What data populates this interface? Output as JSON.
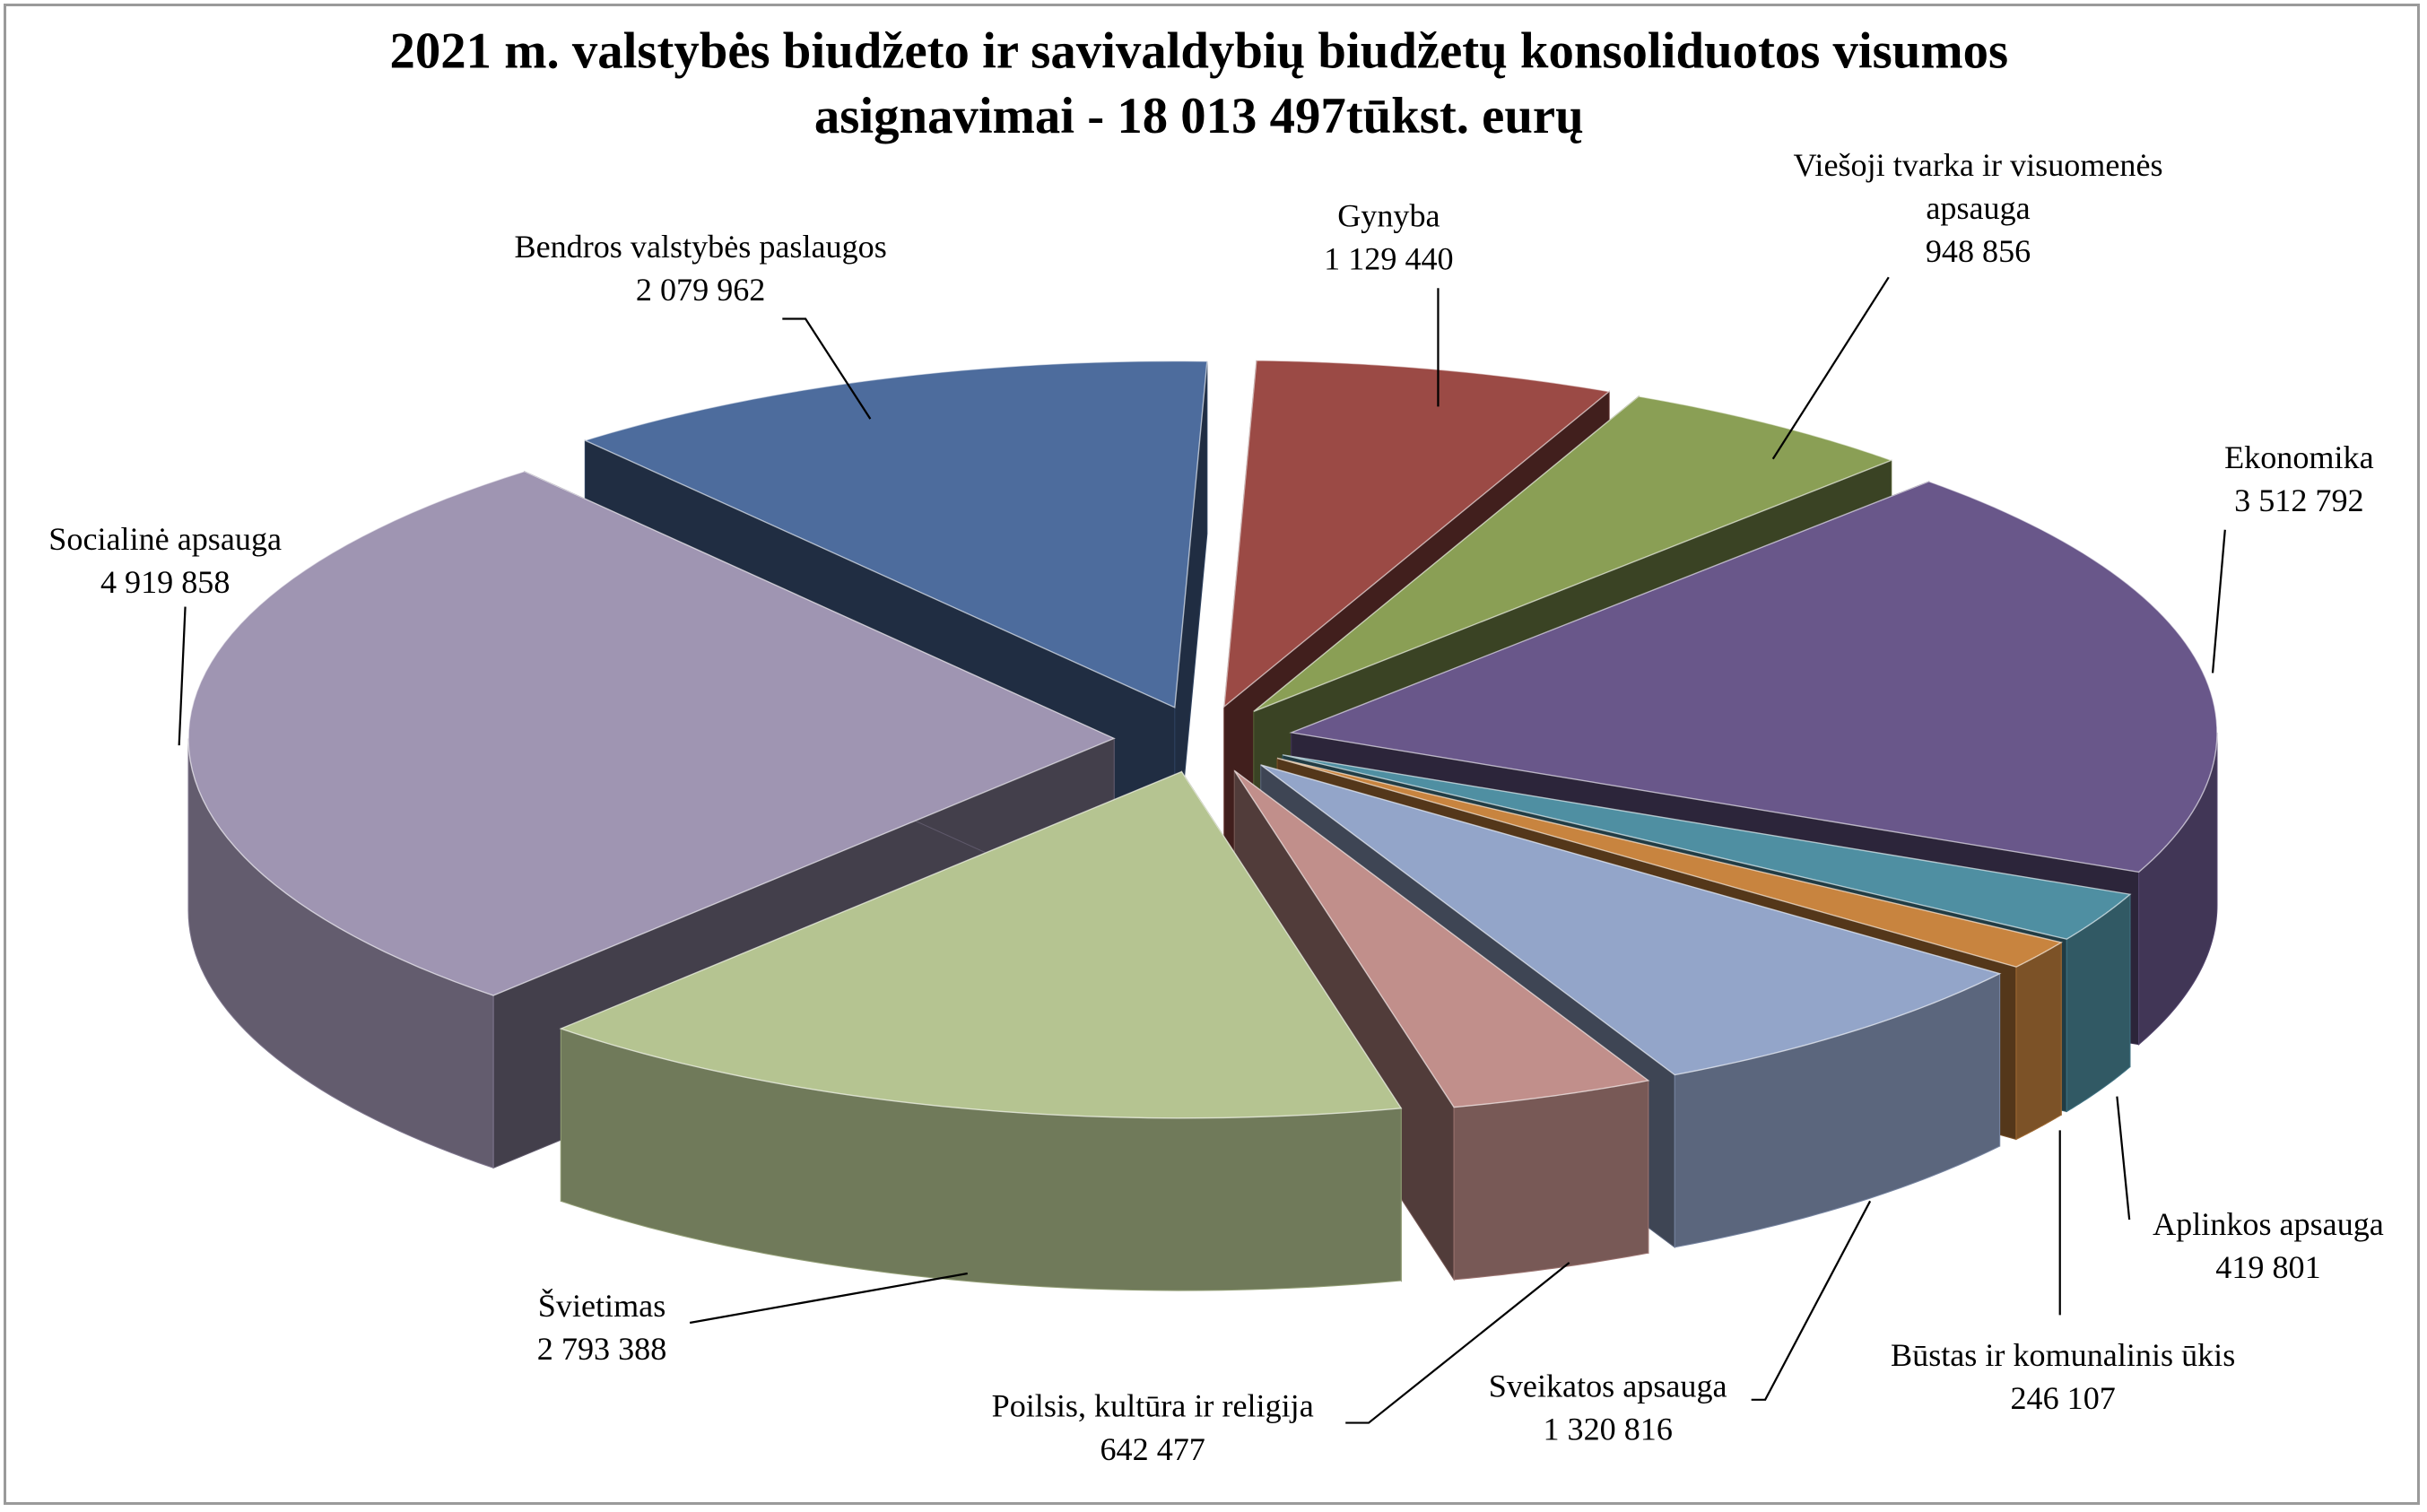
{
  "chart_data": {
    "type": "pie",
    "style": "3d-exploded",
    "title_lines": [
      "2021 m. valstybės biudžeto ir savivaldybių biudžetų konsoliduotos visumos",
      "asignavimai - 18 013 497tūkst. eurų"
    ],
    "unit": "tūkst. eurų",
    "total": 18013497,
    "categories": [
      "Gynyba",
      "Viešoji tvarka ir visuomenės apsauga",
      "Ekonomika",
      "Aplinkos apsauga",
      "Būstas ir komunalinis ūkis",
      "Sveikatos apsauga",
      "Poilsis, kultūra ir religija",
      "Švietimas",
      "Socialinė apsauga",
      "Bendros valstybės paslaugos"
    ],
    "values": [
      1129440,
      948856,
      3512792,
      419801,
      246107,
      1320816,
      642477,
      2793388,
      4919858,
      2079962
    ],
    "data_labels": [
      "1 129 440",
      "948 856",
      "3 512 792",
      "419 801",
      "246 107",
      "1 320 816",
      "642 477",
      "2 793 388",
      "4 919 858",
      "2 079 962"
    ],
    "colors": [
      "#9b4a45",
      "#8a9f55",
      "#69578a",
      "#4f8fa2",
      "#c8843f",
      "#93a5c9",
      "#c18f8b",
      "#b5c491",
      "#9f95b2",
      "#4d6c9d"
    ],
    "legend": "none"
  }
}
